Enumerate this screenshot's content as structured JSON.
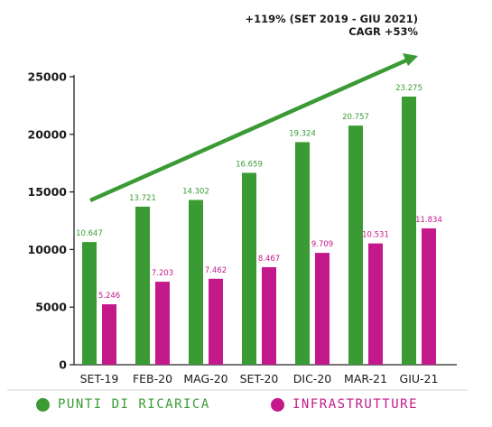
{
  "annotations": {
    "line1": "+119%  (SET 2019 - GIU 2021)",
    "line2": "CAGR +53%"
  },
  "colors": {
    "green": "#3a9b35",
    "magenta": "#c4198b"
  },
  "chart_data": {
    "type": "bar",
    "categories": [
      "SET-19",
      "FEB-20",
      "MAG-20",
      "SET-20",
      "DIC-20",
      "MAR-21",
      "GIU-21"
    ],
    "series": [
      {
        "name": "PUNTI DI RICARICA",
        "values": [
          10647,
          13721,
          14302,
          16659,
          19324,
          20757,
          23275
        ],
        "labels": [
          "10.647",
          "13.721",
          "14.302",
          "16.659",
          "19.324",
          "20.757",
          "23.275"
        ]
      },
      {
        "name": "INFRASTRUTTURE",
        "values": [
          5246,
          7203,
          7462,
          8467,
          9709,
          10531,
          11834
        ],
        "labels": [
          "5.246",
          "7.203",
          "7.462",
          "8.467",
          "9.709",
          "10.531",
          "11.834"
        ]
      }
    ],
    "yticks": [
      "0",
      "5000",
      "10000",
      "15000",
      "20000",
      "25000"
    ],
    "ylim": [
      0,
      25000
    ],
    "grid": false,
    "legend_position": "bottom"
  }
}
